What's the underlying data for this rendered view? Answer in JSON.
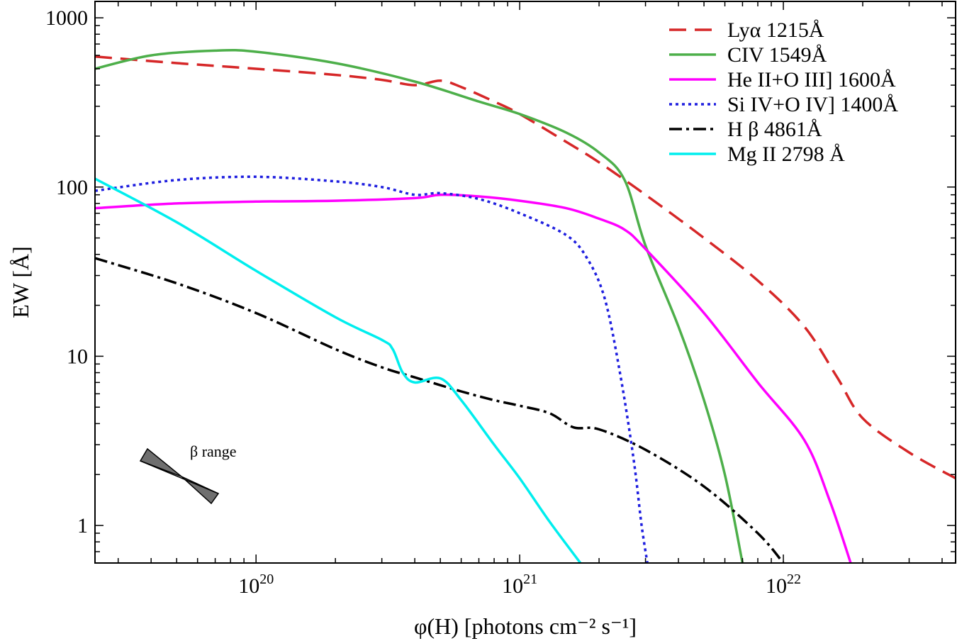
{
  "chart_data": {
    "type": "line",
    "xlabel": "φ(H) [photons cm⁻² s⁻¹]",
    "ylabel": "EW [Å]",
    "xscale": "log",
    "yscale": "log",
    "xlim": [
      2.45e+19,
      4.5e+22
    ],
    "ylim": [
      0.6,
      1250
    ],
    "xticks": [
      {
        "value": 1e+20,
        "mant": "10",
        "exp": "20"
      },
      {
        "value": 1e+21,
        "mant": "10",
        "exp": "21"
      },
      {
        "value": 1e+22,
        "mant": "10",
        "exp": "22"
      }
    ],
    "yticks": [
      {
        "value": 1,
        "label": "1"
      },
      {
        "value": 10,
        "label": "10"
      },
      {
        "value": 100,
        "label": "100"
      },
      {
        "value": 1000,
        "label": "1000"
      }
    ],
    "legend_position": "top-right",
    "series": [
      {
        "name": "Lyα 1215Å",
        "color": "#d62728",
        "dash": "24,12",
        "x": [
          2.45e+19,
          5e+19,
          1e+20,
          2e+20,
          3e+20,
          4e+20,
          5e+20,
          6e+20,
          8e+20,
          1e+21,
          1.5e+21,
          2e+21,
          3e+21,
          5e+21,
          8e+21,
          1.2e+22,
          1.6e+22,
          2e+22,
          3e+22,
          4.5e+22
        ],
        "y": [
          590,
          540,
          500,
          460,
          430,
          400,
          425,
          390,
          320,
          270,
          185,
          140,
          90,
          50,
          28,
          15,
          7.5,
          4.3,
          2.7,
          1.9
        ]
      },
      {
        "name": "CIV 1549Å",
        "color": "#4daf4a",
        "dash": "",
        "x": [
          2.45e+19,
          4e+19,
          7e+19,
          1e+20,
          2e+20,
          4e+20,
          7e+20,
          1e+21,
          1.5e+21,
          2e+21,
          2.5e+21,
          3e+21,
          4e+21,
          5e+21,
          6e+21,
          7e+21
        ],
        "y": [
          500,
          600,
          640,
          630,
          540,
          420,
          320,
          270,
          210,
          160,
          110,
          45,
          15,
          5.5,
          2,
          0.6
        ]
      },
      {
        "name": "He II+O III] 1600Å",
        "color": "#ff00ff",
        "dash": "",
        "x": [
          2.45e+19,
          5e+19,
          1e+20,
          2e+20,
          4e+20,
          5e+20,
          7e+20,
          1e+21,
          1.5e+21,
          2e+21,
          2.5e+21,
          3e+21,
          5e+21,
          8e+21,
          1.2e+22,
          1.5e+22,
          1.8e+22
        ],
        "y": [
          75,
          80,
          82,
          83,
          86,
          90,
          88,
          83,
          75,
          65,
          56,
          43,
          18,
          7,
          3.2,
          1.4,
          0.6
        ]
      },
      {
        "name": "Si IV+O IV] 1400Å",
        "color": "#1f1fdf",
        "dash": "4,5",
        "x": [
          2.45e+19,
          5e+19,
          1e+20,
          2e+20,
          3e+20,
          4e+20,
          5e+20,
          7e+20,
          1e+21,
          1.5e+21,
          1.8e+21,
          2.1e+21,
          2.4e+21,
          2.7e+21,
          2.9e+21,
          3.05e+21
        ],
        "y": [
          95,
          110,
          115,
          108,
          100,
          90,
          92,
          85,
          70,
          52,
          38,
          22,
          8,
          2.5,
          1,
          0.6
        ]
      },
      {
        "name": "H β 4861Å",
        "color": "#000000",
        "dash": "18,6,4,6",
        "x": [
          2.45e+19,
          5e+19,
          1e+20,
          2e+20,
          3e+20,
          4e+20,
          6e+20,
          8e+20,
          1e+21,
          1.3e+21,
          1.6e+21,
          2e+21,
          3e+21,
          5e+21,
          8e+21,
          1e+22
        ],
        "y": [
          38,
          27,
          18,
          11,
          8.6,
          7.5,
          6.2,
          5.5,
          5.1,
          4.6,
          3.8,
          3.7,
          2.8,
          1.7,
          0.9,
          0.6
        ]
      },
      {
        "name": "Mg II 2798 Å",
        "color": "#00eeee",
        "dash": "",
        "x": [
          2.45e+19,
          5e+19,
          1e+20,
          2e+20,
          3e+20,
          3.3e+20,
          3.6e+20,
          4e+20,
          5e+20,
          6e+20,
          8e+20,
          1e+21,
          1.3e+21,
          1.7e+21
        ],
        "y": [
          112,
          62,
          32,
          17,
          12.5,
          11,
          8,
          7,
          7.4,
          5.5,
          3,
          1.9,
          1.05,
          0.6
        ]
      }
    ],
    "annotation": {
      "label": "β range"
    }
  }
}
